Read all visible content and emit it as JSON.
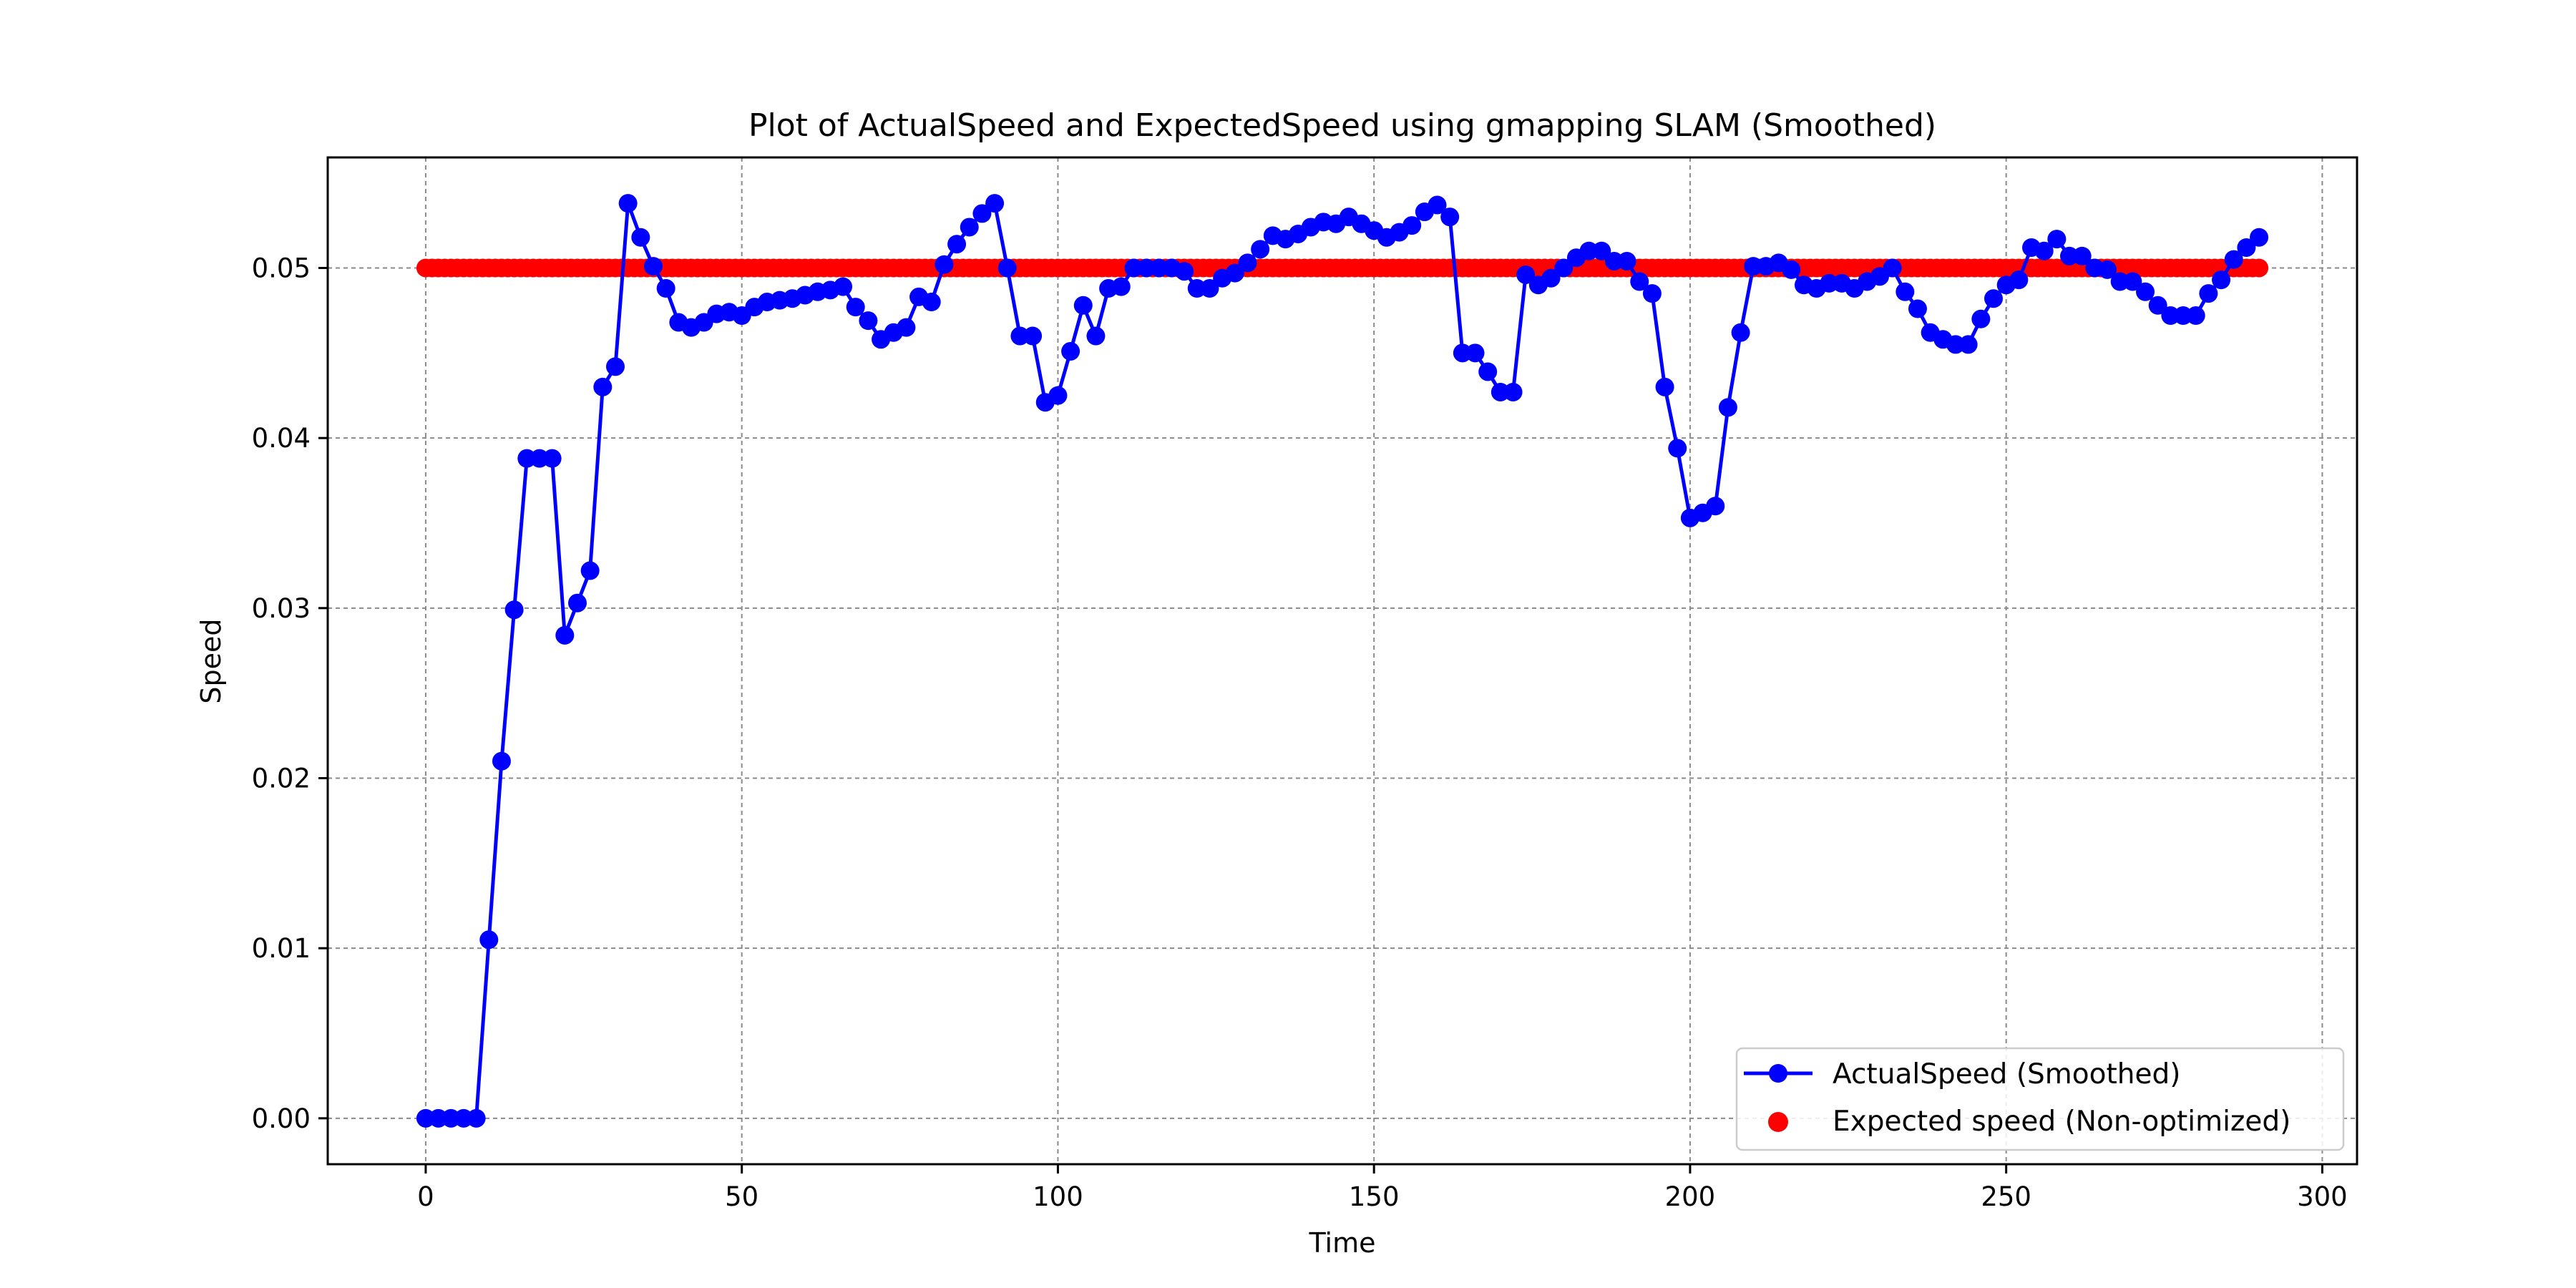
{
  "chart_data": {
    "type": "line",
    "title": "Plot of ActualSpeed and ExpectedSpeed using gmapping SLAM (Smoothed)",
    "xlabel": "Time",
    "ylabel": "Speed",
    "xlim": [
      -15.5,
      305.5
    ],
    "ylim": [
      -0.0027,
      0.0565
    ],
    "xticks": [
      0,
      50,
      100,
      150,
      200,
      250,
      300
    ],
    "xtick_labels": [
      "0",
      "50",
      "100",
      "150",
      "200",
      "250",
      "300"
    ],
    "yticks": [
      0.0,
      0.01,
      0.02,
      0.03,
      0.04,
      0.05
    ],
    "ytick_labels": [
      "0.00",
      "0.01",
      "0.02",
      "0.03",
      "0.04",
      "0.05"
    ],
    "grid": true,
    "legend_position": "lower-right",
    "series": [
      {
        "name": "ActualSpeed (Smoothed)",
        "kind": "line+marker",
        "color": "#0000ff",
        "x": [
          0,
          2,
          4,
          6,
          8,
          10,
          12,
          14,
          16,
          18,
          20,
          22,
          24,
          26,
          28,
          30,
          32,
          34,
          36,
          38,
          40,
          42,
          44,
          46,
          48,
          50,
          52,
          54,
          56,
          58,
          60,
          62,
          64,
          66,
          68,
          70,
          72,
          74,
          76,
          78,
          80,
          82,
          84,
          86,
          88,
          90,
          92,
          94,
          96,
          98,
          100,
          102,
          104,
          106,
          108,
          110,
          112,
          114,
          116,
          118,
          120,
          122,
          124,
          126,
          128,
          130,
          132,
          134,
          136,
          138,
          140,
          142,
          144,
          146,
          148,
          150,
          152,
          154,
          156,
          158,
          160,
          162,
          164,
          166,
          168,
          170,
          172,
          174,
          176,
          178,
          180,
          182,
          184,
          186,
          188,
          190,
          192,
          194,
          196,
          198,
          200,
          202,
          204,
          206,
          208,
          210,
          212,
          214,
          216,
          218,
          220,
          222,
          224,
          226,
          228,
          230,
          232,
          234,
          236,
          238,
          240,
          242,
          244,
          246,
          248,
          250,
          252,
          254,
          256,
          258,
          260,
          262,
          264,
          266,
          268,
          270,
          272,
          274,
          276,
          278,
          280,
          282,
          284,
          286,
          288,
          290
        ],
        "values": [
          0.0,
          0.0,
          0.0,
          0.0,
          0.0,
          0.0105,
          0.021,
          0.0299,
          0.0388,
          0.0388,
          0.0388,
          0.0284,
          0.0303,
          0.0322,
          0.043,
          0.0442,
          0.0538,
          0.0518,
          0.0501,
          0.0488,
          0.0468,
          0.0465,
          0.0468,
          0.0473,
          0.0474,
          0.0472,
          0.0477,
          0.048,
          0.0481,
          0.0482,
          0.0484,
          0.0486,
          0.0487,
          0.0489,
          0.0477,
          0.0469,
          0.0458,
          0.0462,
          0.0465,
          0.0483,
          0.048,
          0.0502,
          0.0514,
          0.0524,
          0.0532,
          0.0538,
          0.05,
          0.046,
          0.046,
          0.0421,
          0.0425,
          0.0451,
          0.0478,
          0.046,
          0.0488,
          0.0489,
          0.05,
          0.05,
          0.05,
          0.05,
          0.0498,
          0.0488,
          0.0488,
          0.0494,
          0.0497,
          0.0503,
          0.0511,
          0.0519,
          0.0517,
          0.052,
          0.0524,
          0.0527,
          0.0526,
          0.053,
          0.0526,
          0.0522,
          0.0518,
          0.0521,
          0.0525,
          0.0533,
          0.0537,
          0.053,
          0.045,
          0.045,
          0.0439,
          0.0427,
          0.0427,
          0.0496,
          0.049,
          0.0494,
          0.05,
          0.0506,
          0.051,
          0.051,
          0.0504,
          0.0504,
          0.0492,
          0.0485,
          0.043,
          0.0394,
          0.0353,
          0.0356,
          0.036,
          0.0418,
          0.0462,
          0.0501,
          0.0501,
          0.0503,
          0.0499,
          0.049,
          0.0488,
          0.0491,
          0.0491,
          0.0488,
          0.0492,
          0.0495,
          0.05,
          0.0486,
          0.0476,
          0.0462,
          0.0458,
          0.0455,
          0.0455,
          0.047,
          0.0482,
          0.049,
          0.0493,
          0.0512,
          0.051,
          0.0517,
          0.0507,
          0.0507,
          0.05,
          0.0499,
          0.0492,
          0.0492,
          0.0486,
          0.0478,
          0.0472,
          0.0472,
          0.0472,
          0.0485,
          0.0493,
          0.0505,
          0.0512,
          0.0518
        ]
      },
      {
        "name": "Expected speed (Non-optimized)",
        "kind": "scatter",
        "color": "#ff0000",
        "x_range": [
          0,
          290
        ],
        "x_step": 1,
        "constant_value": 0.05
      }
    ]
  }
}
